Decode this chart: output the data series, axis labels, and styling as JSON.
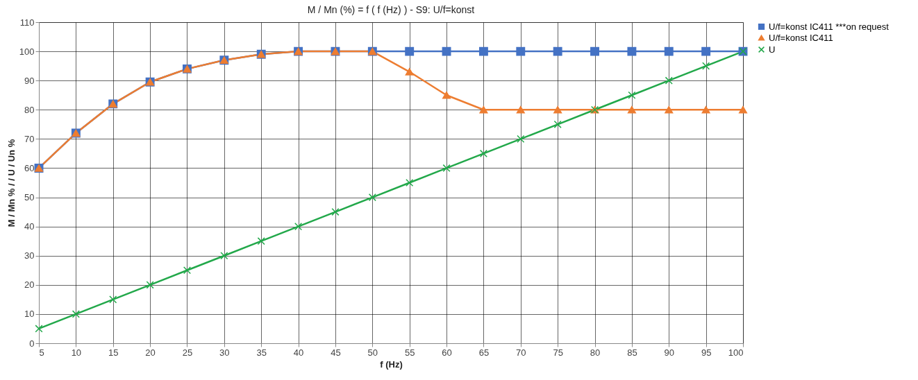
{
  "chart_data": {
    "type": "line",
    "title": "M / Mn (%) = f ( f (Hz) ) - S9: U/f=konst",
    "xlabel": "f (Hz)",
    "ylabel": "M / Mn % / / U / Un %",
    "x": [
      5,
      10,
      15,
      20,
      25,
      30,
      35,
      40,
      45,
      50,
      55,
      60,
      65,
      70,
      75,
      80,
      85,
      90,
      95,
      100
    ],
    "series": [
      {
        "name": "U/f=konst IC411 ***on request",
        "color": "#4472c4",
        "marker": "square",
        "values": [
          60,
          72,
          82,
          89.5,
          94,
          97,
          99,
          100,
          100,
          100,
          100,
          100,
          100,
          100,
          100,
          100,
          100,
          100,
          100,
          100
        ]
      },
      {
        "name": "U/f=konst IC411",
        "color": "#ed7d31",
        "marker": "triangle",
        "values": [
          60,
          72,
          82,
          89.5,
          94,
          97,
          99,
          100,
          100,
          100,
          93,
          85,
          80,
          80,
          80,
          80,
          80,
          80,
          80,
          80
        ]
      },
      {
        "name": "U",
        "color": "#22a84a",
        "marker": "cross",
        "values": [
          5,
          10,
          15,
          20,
          25,
          30,
          35,
          40,
          45,
          50,
          55,
          60,
          65,
          70,
          75,
          80,
          85,
          90,
          95,
          100
        ]
      }
    ],
    "xlim": [
      5,
      100
    ],
    "xticks": [
      5,
      10,
      15,
      20,
      25,
      30,
      35,
      40,
      45,
      50,
      55,
      60,
      65,
      70,
      75,
      80,
      85,
      90,
      95,
      100
    ],
    "ylim": [
      0,
      110
    ],
    "yticks": [
      0,
      10,
      20,
      30,
      40,
      50,
      60,
      70,
      80,
      90,
      100,
      110
    ],
    "grid": true,
    "legend": "right",
    "line_style": "solid"
  }
}
